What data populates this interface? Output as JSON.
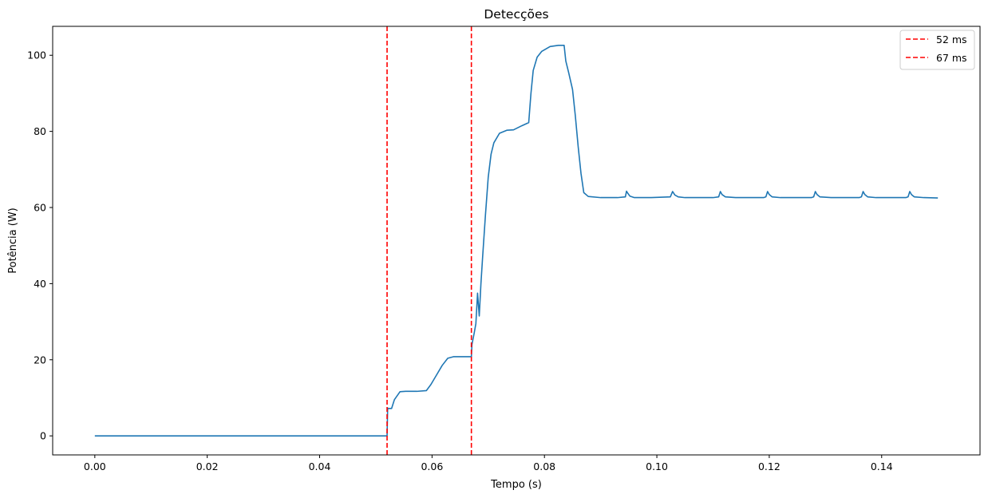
{
  "chart_data": {
    "type": "line",
    "title": "Detecções",
    "xlabel": "Tempo (s)",
    "ylabel": "Potência (W)",
    "xlim": [
      -0.0075,
      0.1575
    ],
    "ylim": [
      -5,
      107.6
    ],
    "xticks": [
      0.0,
      0.02,
      0.04,
      0.06,
      0.08,
      0.1,
      0.12,
      0.14
    ],
    "xtick_labels": [
      "0.00",
      "0.02",
      "0.04",
      "0.06",
      "0.08",
      "0.10",
      "0.12",
      "0.14"
    ],
    "yticks": [
      0,
      20,
      40,
      60,
      80,
      100
    ],
    "ytick_labels": [
      "0",
      "20",
      "40",
      "60",
      "80",
      "100"
    ],
    "grid": false,
    "legend_position": "top-right",
    "series": [
      {
        "color": "#1f77b4",
        "x": [
          0.0,
          0.052,
          0.0521,
          0.0523,
          0.0528,
          0.0533,
          0.0543,
          0.0553,
          0.0573,
          0.059,
          0.0598,
          0.0608,
          0.0618,
          0.0628,
          0.0638,
          0.0648,
          0.066,
          0.067,
          0.0671,
          0.0675,
          0.0678,
          0.0681,
          0.0684,
          0.0687,
          0.069,
          0.0695,
          0.07,
          0.0705,
          0.071,
          0.072,
          0.0733,
          0.0745,
          0.076,
          0.0772,
          0.0776,
          0.078,
          0.0787,
          0.0795,
          0.081,
          0.0825,
          0.0835,
          0.0838,
          0.0843,
          0.085,
          0.0855,
          0.086,
          0.0865,
          0.087,
          0.0878,
          0.09,
          0.093,
          0.0944,
          0.0946,
          0.0948,
          0.0952,
          0.096,
          0.099,
          0.1024,
          0.1028,
          0.1032,
          0.1038,
          0.105,
          0.11,
          0.111,
          0.1113,
          0.1116,
          0.1122,
          0.114,
          0.119,
          0.1194,
          0.1197,
          0.12,
          0.1205,
          0.122,
          0.1275,
          0.1279,
          0.1282,
          0.1285,
          0.129,
          0.131,
          0.136,
          0.1364,
          0.1367,
          0.137,
          0.1375,
          0.139,
          0.1443,
          0.1447,
          0.145,
          0.1453,
          0.1458,
          0.1475,
          0.15
        ],
        "y": [
          0,
          0,
          7.3,
          7.2,
          7.2,
          9.5,
          11.6,
          11.7,
          11.7,
          11.9,
          13.5,
          16.0,
          18.5,
          20.4,
          20.8,
          20.8,
          20.8,
          20.8,
          24.0,
          27.0,
          29.5,
          37.5,
          31.5,
          40.0,
          47.0,
          58.0,
          68.0,
          74.0,
          77.0,
          79.5,
          80.3,
          80.4,
          81.5,
          82.3,
          90.0,
          96.0,
          99.5,
          101.0,
          102.3,
          102.6,
          102.6,
          98.5,
          95.5,
          91.0,
          84.0,
          76.0,
          69.0,
          63.9,
          62.9,
          62.6,
          62.6,
          62.8,
          64.3,
          63.8,
          63.0,
          62.6,
          62.6,
          62.8,
          64.2,
          63.3,
          62.8,
          62.6,
          62.6,
          62.8,
          64.2,
          63.4,
          62.8,
          62.6,
          62.6,
          62.8,
          64.2,
          63.4,
          62.8,
          62.6,
          62.6,
          62.8,
          64.2,
          63.4,
          62.8,
          62.6,
          62.6,
          62.8,
          64.2,
          63.4,
          62.8,
          62.6,
          62.6,
          62.8,
          64.2,
          63.4,
          62.8,
          62.6,
          62.5
        ]
      }
    ],
    "vlines": [
      {
        "x": 0.052,
        "color": "#ff0000",
        "style": "dashed"
      },
      {
        "x": 0.067,
        "color": "#ff0000",
        "style": "dashed"
      }
    ],
    "legend": [
      {
        "label": "52 ms",
        "color": "#ff0000"
      },
      {
        "label": "67 ms",
        "color": "#ff0000"
      }
    ]
  }
}
